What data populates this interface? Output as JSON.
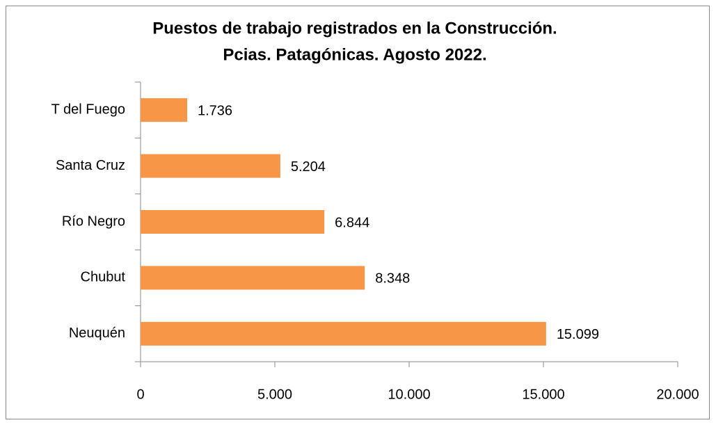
{
  "chart_data": {
    "type": "bar",
    "orientation": "horizontal",
    "title": "Puestos de trabajo registrados en la Construcción.",
    "subtitle": "Pcias. Patagónicas. Agosto 2022.",
    "categories": [
      "T del Fuego",
      "Santa Cruz",
      "Río Negro",
      "Chubut",
      "Neuquén"
    ],
    "values": [
      1736,
      5204,
      6844,
      8348,
      15099
    ],
    "value_labels": [
      "1.736",
      "5.204",
      "6.844",
      "8.348",
      "15.099"
    ],
    "color": "#f79646",
    "xlim": [
      0,
      20000
    ],
    "xticks": [
      0,
      {
        "value": 5000,
        "label": "5.000"
      },
      {
        "value": 10000,
        "label": "10.000"
      },
      {
        "value": 15000,
        "label": "15.000"
      },
      {
        "value": 20000,
        "label": "20.000"
      }
    ],
    "grid": false
  }
}
